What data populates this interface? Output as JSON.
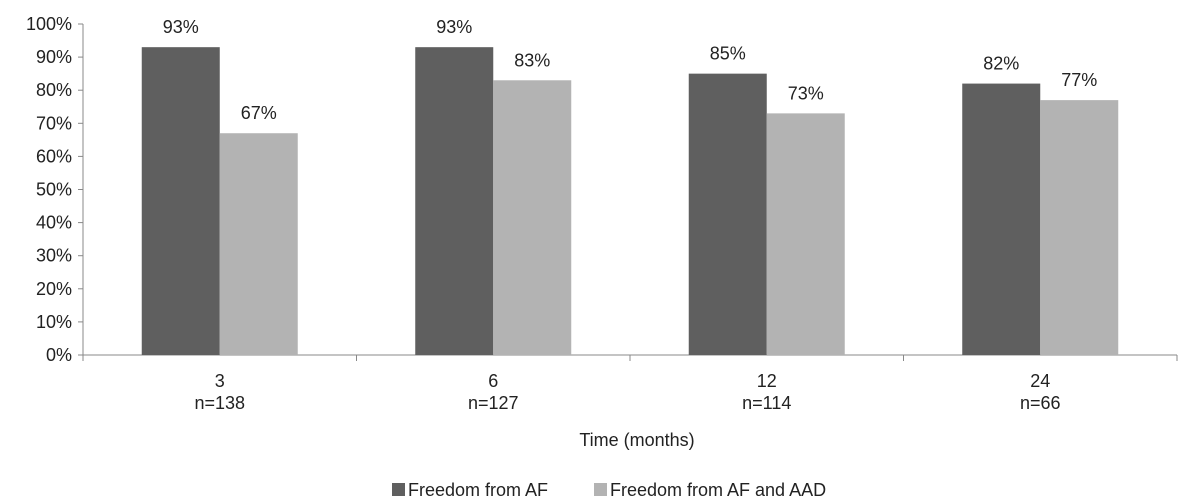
{
  "chart_data": {
    "type": "bar",
    "categories": [
      "3",
      "6",
      "12",
      "24"
    ],
    "category_sublabels": [
      "n=138",
      "n=127",
      "n=114",
      "n=66"
    ],
    "series": [
      {
        "name": "Freedom from AF",
        "values": [
          93,
          93,
          85,
          82
        ],
        "labels": [
          "93%",
          "93%",
          "85%",
          "82%"
        ],
        "color": "#5f5f5f"
      },
      {
        "name": "Freedom from AF and AAD",
        "values": [
          67,
          83,
          73,
          77
        ],
        "labels": [
          "67%",
          "83%",
          "73%",
          "77%"
        ],
        "color": "#b3b3b3"
      }
    ],
    "title": "",
    "xlabel": "Time (months)",
    "ylabel": "",
    "ylim": [
      0,
      100
    ],
    "yticks": [
      "0%",
      "10%",
      "20%",
      "30%",
      "40%",
      "50%",
      "60%",
      "70%",
      "80%",
      "90%",
      "100%"
    ],
    "grid": false,
    "legend_position": "bottom"
  }
}
